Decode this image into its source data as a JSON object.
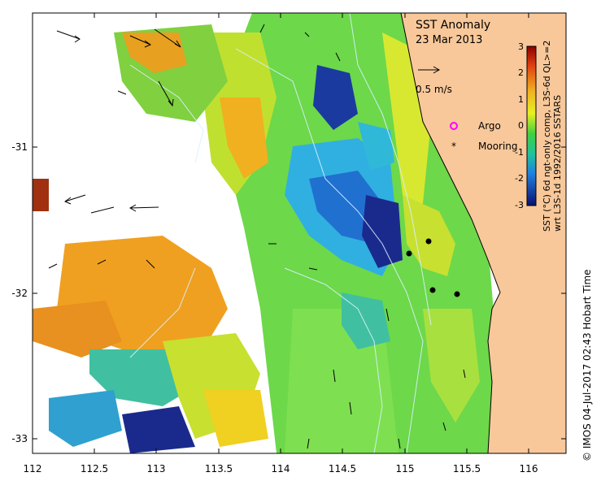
{
  "title": "SST Anomaly",
  "date": "23 Mar 2013",
  "velocity_scale": "0.5 m/s",
  "legend": {
    "argo": "Argo",
    "mooring": "Mooring"
  },
  "colorbar": {
    "ticks": [
      "3",
      "2",
      "1",
      "0",
      "-1",
      "-2",
      "-3"
    ],
    "label_line1": "SST (°C) 6d ngt-only comp, L3S-6d QL>=2",
    "label_line2": "wrt L3S-1d 1992/2016 SSTARS"
  },
  "axes": {
    "x_ticks": [
      "112",
      "112.5",
      "113",
      "113.5",
      "114",
      "114.5",
      "115",
      "115.5",
      "116"
    ],
    "y_ticks": [
      "-31",
      "-32",
      "-33"
    ],
    "xlim": [
      112,
      116.3
    ],
    "ylim": [
      -33.1,
      -30.1
    ]
  },
  "credit": "© IMOS 04-Jul-2017 02:43 Hobart Time",
  "colors": {
    "land": "#f8c89a",
    "warm": "#f0a020",
    "neutral": "#6dd84a",
    "cool": "#20a0d0",
    "cold": "#1a2a8c"
  },
  "moorings": [
    {
      "lon": 115.06,
      "lat": -31.73
    },
    {
      "lon": 115.18,
      "lat": -31.65
    },
    {
      "lon": 115.2,
      "lat": -32.0
    },
    {
      "lon": 115.4,
      "lat": -32.02
    }
  ]
}
